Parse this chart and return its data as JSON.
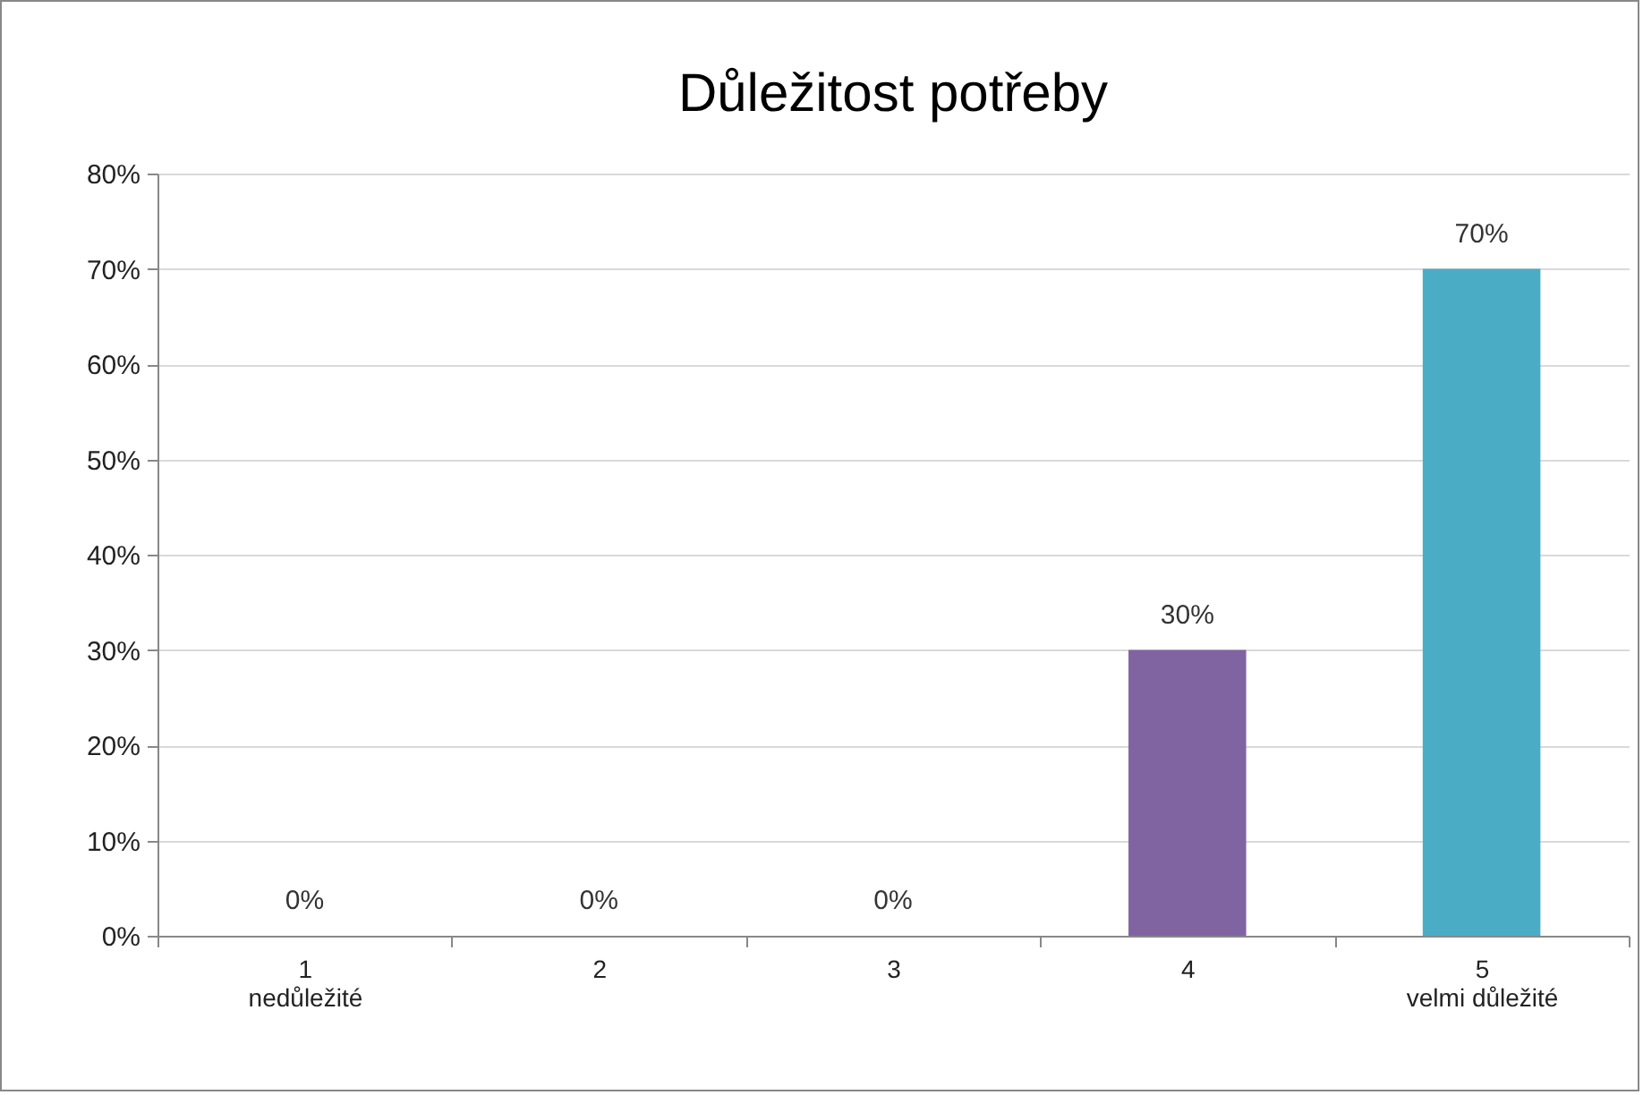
{
  "chart_data": {
    "type": "bar",
    "title": "Důležitost potřeby",
    "categories": [
      "1\nnedůležité",
      "2",
      "3",
      "4",
      "5\nvelmi důležité"
    ],
    "values": [
      0,
      0,
      0,
      30,
      70
    ],
    "colors": [
      "#4f81bd",
      "#c0504d",
      "#9bbb59",
      "#8064a2",
      "#4bacc6"
    ],
    "value_labels": [
      "0%",
      "0%",
      "0%",
      "30%",
      "70%"
    ],
    "ylim": [
      0,
      80
    ],
    "yticks": [
      {
        "value": 0,
        "label": "0%"
      },
      {
        "value": 10,
        "label": "10%"
      },
      {
        "value": 20,
        "label": "20%"
      },
      {
        "value": 30,
        "label": "30%"
      },
      {
        "value": 40,
        "label": "40%"
      },
      {
        "value": 50,
        "label": "50%"
      },
      {
        "value": 60,
        "label": "60%"
      },
      {
        "value": 70,
        "label": "70%"
      },
      {
        "value": 80,
        "label": "80%"
      }
    ],
    "grid": "y"
  }
}
